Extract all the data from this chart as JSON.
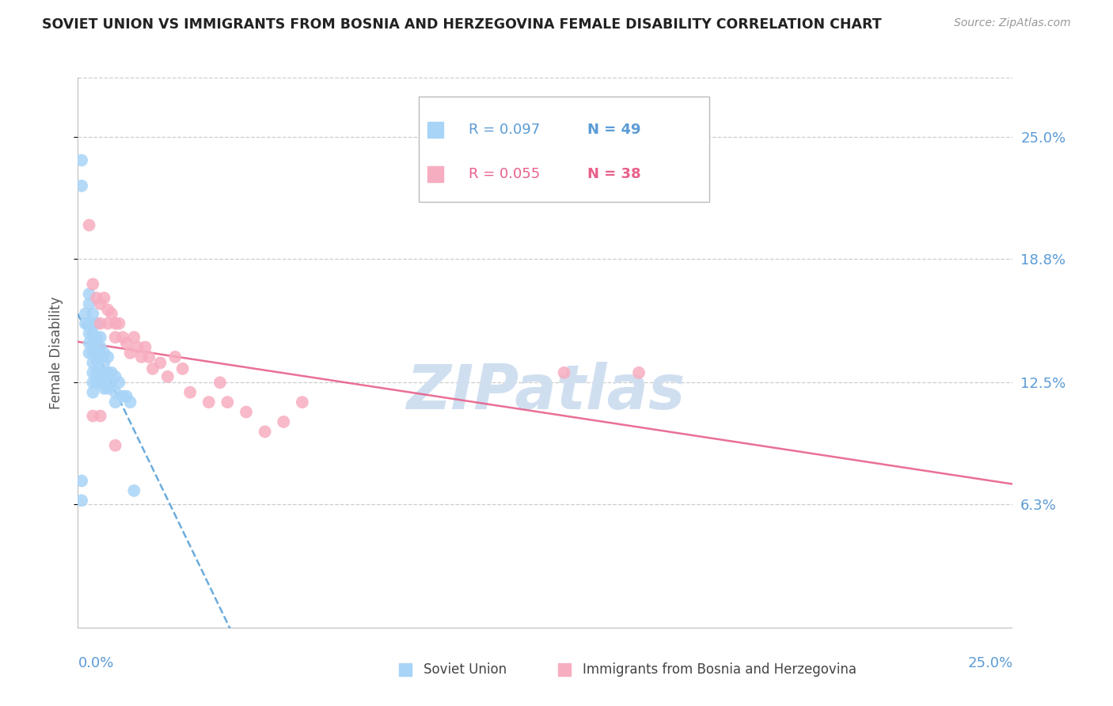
{
  "title": "SOVIET UNION VS IMMIGRANTS FROM BOSNIA AND HERZEGOVINA FEMALE DISABILITY CORRELATION CHART",
  "source": "Source: ZipAtlas.com",
  "ylabel": "Female Disability",
  "y_tick_labels": [
    "25.0%",
    "18.8%",
    "12.5%",
    "6.3%"
  ],
  "y_tick_values": [
    0.25,
    0.188,
    0.125,
    0.063
  ],
  "xlim": [
    0.0,
    0.25
  ],
  "ylim": [
    0.0,
    0.28
  ],
  "soviet_color": "#a8d4f7",
  "bosnia_color": "#f7adc0",
  "trendline_soviet_color": "#5ba3d9",
  "trendline_bosnia_color": "#e8608a",
  "watermark": "ZIPatlas",
  "watermark_color": "#d0dff0",
  "soviet_R": 0.097,
  "soviet_N": 49,
  "bosnia_R": 0.055,
  "bosnia_N": 38,
  "legend_blue_text1": "R = 0.097",
  "legend_blue_text2": "N = 49",
  "legend_pink_text1": "R = 0.055",
  "legend_pink_text2": "N = 38",
  "soviet_x": [
    0.001,
    0.001,
    0.002,
    0.002,
    0.003,
    0.003,
    0.003,
    0.003,
    0.003,
    0.003,
    0.004,
    0.004,
    0.004,
    0.004,
    0.004,
    0.004,
    0.004,
    0.004,
    0.004,
    0.005,
    0.005,
    0.005,
    0.005,
    0.005,
    0.005,
    0.006,
    0.006,
    0.006,
    0.006,
    0.006,
    0.007,
    0.007,
    0.007,
    0.007,
    0.008,
    0.008,
    0.008,
    0.009,
    0.009,
    0.01,
    0.01,
    0.01,
    0.011,
    0.012,
    0.013,
    0.014,
    0.015,
    0.001,
    0.001
  ],
  "soviet_y": [
    0.238,
    0.225,
    0.16,
    0.155,
    0.17,
    0.165,
    0.155,
    0.15,
    0.145,
    0.14,
    0.16,
    0.155,
    0.15,
    0.145,
    0.14,
    0.135,
    0.13,
    0.125,
    0.12,
    0.155,
    0.148,
    0.142,
    0.136,
    0.13,
    0.125,
    0.148,
    0.143,
    0.138,
    0.13,
    0.125,
    0.14,
    0.135,
    0.128,
    0.122,
    0.138,
    0.13,
    0.122,
    0.13,
    0.125,
    0.128,
    0.12,
    0.115,
    0.125,
    0.118,
    0.118,
    0.115,
    0.07,
    0.075,
    0.065
  ],
  "bosnia_x": [
    0.003,
    0.004,
    0.005,
    0.006,
    0.006,
    0.007,
    0.008,
    0.008,
    0.009,
    0.01,
    0.01,
    0.011,
    0.012,
    0.013,
    0.014,
    0.015,
    0.016,
    0.017,
    0.018,
    0.019,
    0.02,
    0.022,
    0.024,
    0.026,
    0.028,
    0.03,
    0.035,
    0.038,
    0.04,
    0.045,
    0.05,
    0.055,
    0.06,
    0.13,
    0.15,
    0.004,
    0.006,
    0.01
  ],
  "bosnia_y": [
    0.205,
    0.175,
    0.168,
    0.165,
    0.155,
    0.168,
    0.162,
    0.155,
    0.16,
    0.155,
    0.148,
    0.155,
    0.148,
    0.145,
    0.14,
    0.148,
    0.143,
    0.138,
    0.143,
    0.138,
    0.132,
    0.135,
    0.128,
    0.138,
    0.132,
    0.12,
    0.115,
    0.125,
    0.115,
    0.11,
    0.1,
    0.105,
    0.115,
    0.13,
    0.13,
    0.108,
    0.108,
    0.093
  ]
}
